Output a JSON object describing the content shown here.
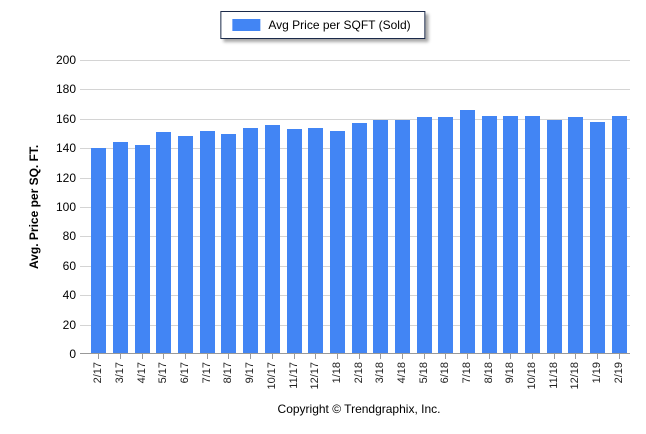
{
  "legend": {
    "label": "Avg Price per SQFT (Sold)"
  },
  "y_axis": {
    "title": "Avg. Price per SQ. FT.",
    "ticks": [
      0,
      20,
      40,
      60,
      80,
      100,
      120,
      140,
      160,
      180,
      200
    ]
  },
  "footer": {
    "copyright": "Copyright © Trendgraphix, Inc."
  },
  "colors": {
    "bar": "#4285F4",
    "gridline": "#D4D4D4",
    "axis_line": "#999999",
    "label_text": "#222222",
    "legend_border": "#1B2A4A"
  },
  "chart_data": {
    "type": "bar",
    "title": "Avg Price per SQFT (Sold)",
    "xlabel": "",
    "ylabel": "Avg. Price per SQ. FT.",
    "ylim": [
      0,
      200
    ],
    "y_tick_step": 20,
    "grid": true,
    "legend_position": "top-center",
    "categories": [
      "2/17",
      "3/17",
      "4/17",
      "5/17",
      "6/17",
      "7/17",
      "8/17",
      "9/17",
      "10/17",
      "11/17",
      "12/17",
      "1/18",
      "2/18",
      "3/18",
      "4/18",
      "5/18",
      "6/18",
      "7/18",
      "8/18",
      "9/18",
      "10/18",
      "11/18",
      "12/18",
      "1/19",
      "2/19"
    ],
    "values": [
      140,
      144,
      142,
      151,
      148,
      152,
      150,
      154,
      156,
      153,
      154,
      152,
      157,
      159,
      159,
      161,
      161,
      166,
      162,
      162,
      162,
      159,
      161,
      158,
      162
    ]
  }
}
